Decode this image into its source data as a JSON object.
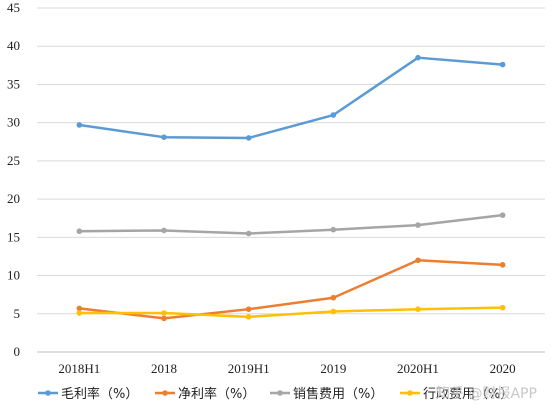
{
  "chart_data": {
    "type": "line",
    "categories": [
      "2018H1",
      "2018",
      "2019H1",
      "2019",
      "2020H1",
      "2020"
    ],
    "ylim": [
      0,
      45
    ],
    "yticks": [
      0,
      5,
      10,
      15,
      20,
      25,
      30,
      35,
      40,
      45
    ],
    "grid": true,
    "legend_position": "bottom",
    "series": [
      {
        "name": "毛利率（%）",
        "color": "#5b9bd5",
        "values": [
          29.7,
          28.1,
          28.0,
          31.0,
          38.5,
          37.6
        ]
      },
      {
        "name": "净利率（%）",
        "color": "#ed7d31",
        "values": [
          5.7,
          4.4,
          5.6,
          7.1,
          12.0,
          11.4
        ]
      },
      {
        "name": "销售费用（%）",
        "color": "#a5a5a5",
        "values": [
          15.8,
          15.9,
          15.5,
          16.0,
          16.6,
          17.9
        ]
      },
      {
        "name": "行政费用（%）",
        "color": "#ffc000",
        "values": [
          5.1,
          5.1,
          4.6,
          5.3,
          5.6,
          5.8
        ]
      }
    ]
  },
  "watermark": "知乎 @财报APP"
}
